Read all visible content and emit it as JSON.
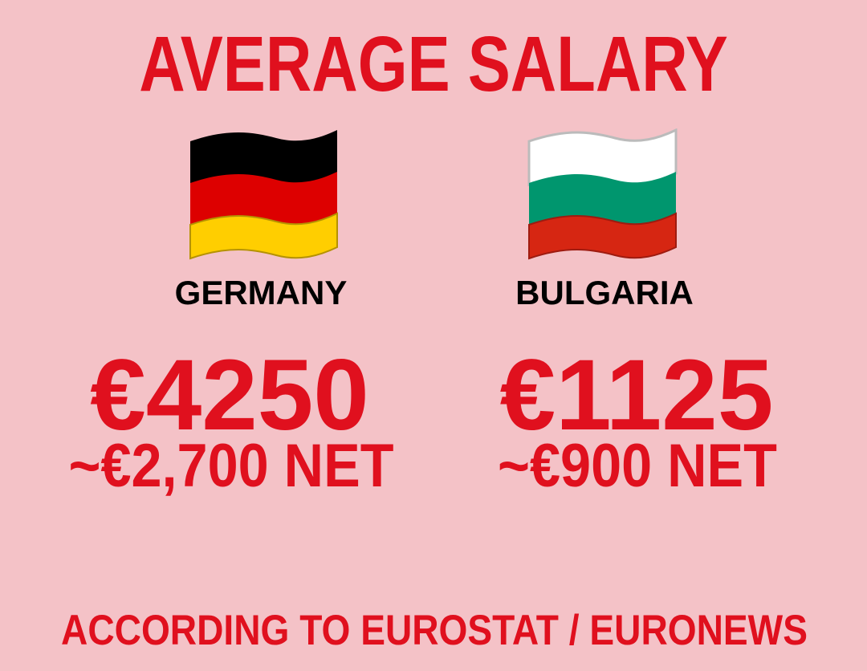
{
  "title": "AVERAGE SALARY",
  "countries": [
    {
      "name": "GERMANY",
      "gross": "€4250",
      "net": "~€2,700 NET",
      "flag_icon": "germany-flag-icon",
      "flag_colors": [
        "#000000",
        "#dd0000",
        "#ffce00"
      ]
    },
    {
      "name": "BULGARIA",
      "gross": "€1125",
      "net": "~€900 NET",
      "flag_icon": "bulgaria-flag-icon",
      "flag_colors": [
        "#ffffff",
        "#00966e",
        "#d62612"
      ]
    }
  ],
  "footer": "ACCORDING TO EUROSTAT / EURONEWS",
  "colors": {
    "background": "#f4c2c7",
    "accent": "#e0101e"
  }
}
